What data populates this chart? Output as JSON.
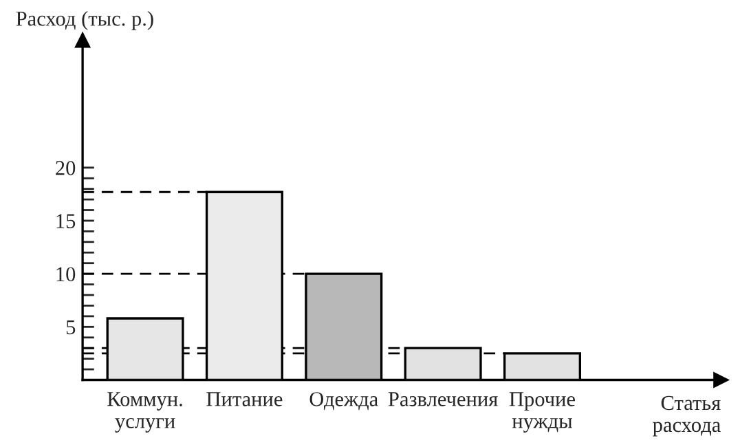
{
  "chart_data": {
    "type": "bar",
    "categories": [
      "Коммун.\nуслуги",
      "Питание",
      "Одежда",
      "Развлечения",
      "Прочие\nнужды"
    ],
    "values": [
      5.8,
      17.7,
      10,
      3,
      2.5
    ],
    "colors": [
      "#e6e6e6",
      "#ebebeb",
      "#b8b8b8",
      "#e2e2e2",
      "#e2e2e2"
    ],
    "xlabel": "Статья\nрасхода",
    "ylabel": "Расход (тыс. р.)",
    "ylim": [
      0,
      32
    ],
    "yticks": [
      {
        "value": 1,
        "label": null
      },
      {
        "value": 2,
        "label": null
      },
      {
        "value": 3,
        "label": null
      },
      {
        "value": 4,
        "label": null
      },
      5,
      {
        "value": 6,
        "label": null
      },
      {
        "value": 7,
        "label": null
      },
      {
        "value": 8,
        "label": null
      },
      {
        "value": 9,
        "label": null
      },
      10,
      {
        "value": 11,
        "label": null
      },
      {
        "value": 12,
        "label": null
      },
      {
        "value": 13,
        "label": null
      },
      {
        "value": 14,
        "label": null
      },
      15,
      {
        "value": 16,
        "label": null
      },
      {
        "value": 17,
        "label": null
      },
      {
        "value": 18,
        "label": null
      },
      {
        "value": 19,
        "label": null
      },
      20
    ],
    "ref_lines": [
      {
        "axis": "y",
        "value": 17.7,
        "line_style": "dashed",
        "color": "#000000"
      },
      {
        "axis": "y",
        "value": 10,
        "line_style": "dashed",
        "color": "#000000"
      },
      {
        "axis": "y",
        "value": 3,
        "line_style": "dashed",
        "color": "#000000"
      },
      {
        "axis": "y",
        "value": 2.5,
        "line_style": "dashed",
        "color": "#000000"
      }
    ],
    "grid": false,
    "legend": false
  }
}
